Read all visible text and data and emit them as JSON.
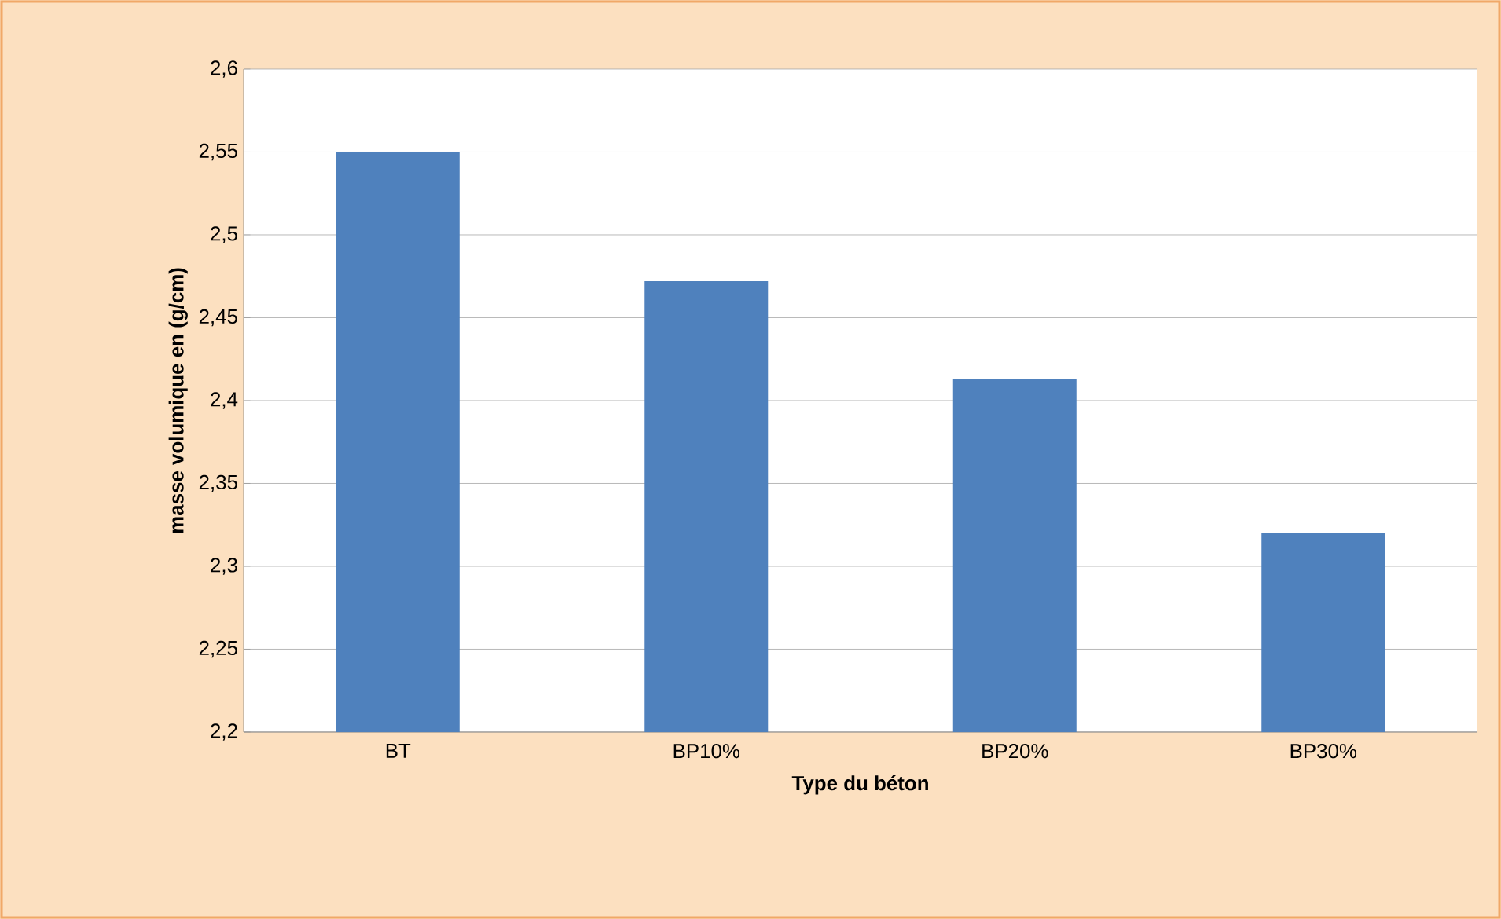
{
  "chart_data": {
    "type": "bar",
    "xlabel": "Type  du béton",
    "ylabel": "masse volumique en (g/cm)",
    "categories": [
      "BT",
      "BP10%",
      "BP20%",
      "BP30%"
    ],
    "values": [
      2.55,
      2.472,
      2.413,
      2.32
    ],
    "color": "#4f81bd",
    "ylim": [
      2.2,
      2.6
    ],
    "yticks": [
      {
        "value": 2.2,
        "label": "2,2"
      },
      {
        "value": 2.25,
        "label": "2,25"
      },
      {
        "value": 2.3,
        "label": "2,3"
      },
      {
        "value": 2.35,
        "label": "2,35"
      },
      {
        "value": 2.4,
        "label": "2,4"
      },
      {
        "value": 2.45,
        "label": "2,45"
      },
      {
        "value": 2.5,
        "label": "2,5"
      },
      {
        "value": 2.55,
        "label": "2,55"
      },
      {
        "value": 2.6,
        "label": "2,6"
      }
    ],
    "grid": "y"
  }
}
